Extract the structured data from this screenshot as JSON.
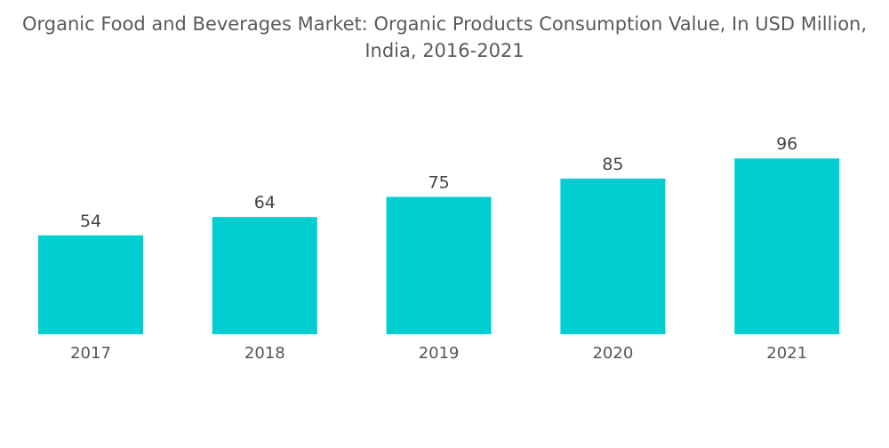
{
  "chart_data": {
    "type": "bar",
    "title": "Organic Food and Beverages Market: Organic Products Consumption Value, In USD Million, India, 2016-2021",
    "title_lines": [
      "Organic Food and Beverages Market: Organic Products Consumption Value, In USD Million,",
      "India, 2016-2021"
    ],
    "categories": [
      "2017",
      "2018",
      "2019",
      "2020",
      "2021"
    ],
    "values": [
      54,
      64,
      75,
      85,
      96
    ],
    "data_labels": [
      "54",
      "64",
      "75",
      "85",
      "96"
    ],
    "xlabel": "",
    "ylabel": "",
    "ylim": [
      0,
      96
    ],
    "grid": false,
    "legend": "none",
    "bar_color": "#00CED1"
  }
}
